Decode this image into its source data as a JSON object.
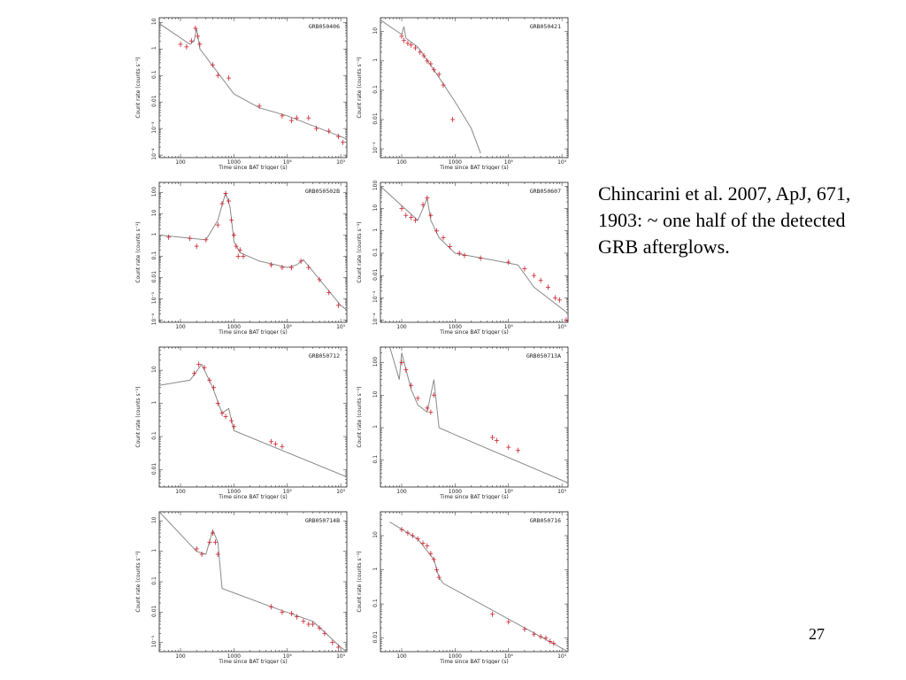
{
  "caption": "Chincarini et al. 2007, ApJ, 671, 1903: ~ one half of the detected GRB afterglows.",
  "page_number": "27",
  "colors": {
    "data": "#cc1f2a",
    "model": "#8a8a8a",
    "axis": "#222222"
  },
  "chart_data": [
    {
      "type": "scatter",
      "title": "GRB050406",
      "xlabel": "Time since BAT trigger (s)",
      "ylabel": "Count rate (counts s⁻¹)",
      "xscale": "log",
      "yscale": "log",
      "xlim": [
        40,
        130000
      ],
      "ylim": [
        8e-05,
        15
      ],
      "xticks": [
        {
          "v": 100,
          "label": "100"
        },
        {
          "v": 1000,
          "label": "1000"
        },
        {
          "v": 10000,
          "label": "10⁴"
        },
        {
          "v": 100000,
          "label": "10⁵"
        }
      ],
      "yticks": [
        {
          "v": 10,
          "label": "10"
        },
        {
          "v": 1,
          "label": "1"
        },
        {
          "v": 0.1,
          "label": "0.1"
        },
        {
          "v": 0.01,
          "label": "0.01"
        },
        {
          "v": 0.001,
          "label": "10⁻³"
        },
        {
          "v": 0.0001,
          "label": "10⁻⁴"
        }
      ],
      "model": [
        [
          40,
          9
        ],
        [
          150,
          1.5
        ],
        [
          180,
          2
        ],
        [
          200,
          6
        ],
        [
          230,
          1
        ],
        [
          300,
          0.5
        ],
        [
          1000,
          0.02
        ],
        [
          3000,
          0.006
        ],
        [
          10000,
          0.003
        ],
        [
          100000,
          0.0005
        ],
        [
          130000,
          0.0004
        ]
      ],
      "points": [
        [
          100,
          1.5
        ],
        [
          130,
          1.2
        ],
        [
          160,
          2
        ],
        [
          190,
          6
        ],
        [
          210,
          3
        ],
        [
          230,
          1.5
        ],
        [
          400,
          0.25
        ],
        [
          500,
          0.1
        ],
        [
          800,
          0.08
        ],
        [
          3000,
          0.007
        ],
        [
          8000,
          0.003
        ],
        [
          12000,
          0.002
        ],
        [
          15000,
          0.0025
        ],
        [
          25000,
          0.0025
        ],
        [
          35000,
          0.001
        ],
        [
          60000,
          0.0008
        ],
        [
          90000,
          0.0005
        ],
        [
          110000,
          0.0003
        ]
      ]
    },
    {
      "type": "scatter",
      "title": "GRB050421",
      "xlabel": "Time since BAT trigger (s)",
      "ylabel": "Count rate (counts s⁻¹)",
      "xscale": "log",
      "yscale": "log",
      "xlim": [
        40,
        130000
      ],
      "ylim": [
        0.0005,
        30
      ],
      "xticks": [
        {
          "v": 100,
          "label": "100"
        },
        {
          "v": 1000,
          "label": "1000"
        },
        {
          "v": 10000,
          "label": "10⁴"
        },
        {
          "v": 100000,
          "label": "10⁵"
        }
      ],
      "yticks": [
        {
          "v": 10,
          "label": "10"
        },
        {
          "v": 1,
          "label": "1"
        },
        {
          "v": 0.1,
          "label": "0.1"
        },
        {
          "v": 0.01,
          "label": "0.01"
        },
        {
          "v": 0.001,
          "label": "10⁻³"
        }
      ],
      "model": [
        [
          40,
          25
        ],
        [
          100,
          8
        ],
        [
          110,
          15
        ],
        [
          120,
          6
        ],
        [
          200,
          3
        ],
        [
          400,
          0.5
        ],
        [
          1000,
          0.04
        ],
        [
          2000,
          0.005
        ],
        [
          3000,
          0.0007
        ]
      ],
      "points": [
        [
          100,
          7
        ],
        [
          110,
          5
        ],
        [
          130,
          4
        ],
        [
          150,
          3.5
        ],
        [
          180,
          2.8
        ],
        [
          220,
          2
        ],
        [
          260,
          1.5
        ],
        [
          300,
          1
        ],
        [
          350,
          0.8
        ],
        [
          400,
          0.5
        ],
        [
          500,
          0.35
        ],
        [
          600,
          0.15
        ],
        [
          900,
          0.01
        ]
      ]
    },
    {
      "type": "scatter",
      "title": "GRB050502B",
      "xlabel": "Time since BAT trigger (s)",
      "ylabel": "Count rate (counts s⁻¹)",
      "xscale": "log",
      "yscale": "log",
      "xlim": [
        40,
        130000
      ],
      "ylim": [
        8e-05,
        300
      ],
      "xticks": [
        {
          "v": 100,
          "label": "100"
        },
        {
          "v": 1000,
          "label": "1000"
        },
        {
          "v": 10000,
          "label": "10⁴"
        },
        {
          "v": 100000,
          "label": "10⁵"
        }
      ],
      "yticks": [
        {
          "v": 100,
          "label": "100"
        },
        {
          "v": 10,
          "label": "10"
        },
        {
          "v": 1,
          "label": "1"
        },
        {
          "v": 0.1,
          "label": "0.1"
        },
        {
          "v": 0.01,
          "label": "0.01"
        },
        {
          "v": 0.001,
          "label": "10⁻³"
        },
        {
          "v": 0.0001,
          "label": "10⁻⁴"
        }
      ],
      "model": [
        [
          40,
          1
        ],
        [
          300,
          0.6
        ],
        [
          500,
          5
        ],
        [
          700,
          100
        ],
        [
          850,
          20
        ],
        [
          1000,
          0.5
        ],
        [
          1300,
          0.15
        ],
        [
          3000,
          0.06
        ],
        [
          10000,
          0.03
        ],
        [
          15000,
          0.04
        ],
        [
          20000,
          0.07
        ],
        [
          30000,
          0.02
        ],
        [
          100000,
          0.0005
        ],
        [
          130000,
          0.0003
        ]
      ],
      "points": [
        [
          60,
          0.8
        ],
        [
          150,
          0.7
        ],
        [
          200,
          0.3
        ],
        [
          300,
          0.6
        ],
        [
          500,
          3
        ],
        [
          600,
          30
        ],
        [
          700,
          90
        ],
        [
          800,
          40
        ],
        [
          900,
          5
        ],
        [
          1000,
          1
        ],
        [
          1100,
          0.3
        ],
        [
          1200,
          0.1
        ],
        [
          1300,
          0.2
        ],
        [
          1500,
          0.1
        ],
        [
          5000,
          0.04
        ],
        [
          8000,
          0.03
        ],
        [
          12000,
          0.03
        ],
        [
          18000,
          0.06
        ],
        [
          25000,
          0.03
        ],
        [
          40000,
          0.008
        ],
        [
          60000,
          0.002
        ],
        [
          90000,
          0.0005
        ]
      ]
    },
    {
      "type": "scatter",
      "title": "GRB050607",
      "xlabel": "Time since BAT trigger (s)",
      "ylabel": "Count rate (counts s⁻¹)",
      "xscale": "log",
      "yscale": "log",
      "xlim": [
        40,
        130000
      ],
      "ylim": [
        8e-05,
        150
      ],
      "xticks": [
        {
          "v": 100,
          "label": "100"
        },
        {
          "v": 1000,
          "label": "1000"
        },
        {
          "v": 10000,
          "label": "10⁴"
        },
        {
          "v": 100000,
          "label": "10⁵"
        }
      ],
      "yticks": [
        {
          "v": 100,
          "label": "100"
        },
        {
          "v": 10,
          "label": "10"
        },
        {
          "v": 1,
          "label": "1"
        },
        {
          "v": 0.1,
          "label": "0.1"
        },
        {
          "v": 0.01,
          "label": "0.01"
        },
        {
          "v": 0.001,
          "label": "10⁻³"
        },
        {
          "v": 0.0001,
          "label": "10⁻⁴"
        }
      ],
      "model": [
        [
          40,
          100
        ],
        [
          200,
          3
        ],
        [
          250,
          10
        ],
        [
          300,
          30
        ],
        [
          350,
          3
        ],
        [
          500,
          0.5
        ],
        [
          1000,
          0.1
        ],
        [
          5000,
          0.05
        ],
        [
          15000,
          0.03
        ],
        [
          30000,
          0.003
        ],
        [
          130000,
          0.0002
        ]
      ],
      "points": [
        [
          100,
          10
        ],
        [
          120,
          5
        ],
        [
          150,
          4
        ],
        [
          180,
          3
        ],
        [
          250,
          15
        ],
        [
          300,
          30
        ],
        [
          350,
          5
        ],
        [
          450,
          1
        ],
        [
          600,
          0.5
        ],
        [
          800,
          0.2
        ],
        [
          1200,
          0.1
        ],
        [
          1500,
          0.08
        ],
        [
          3000,
          0.06
        ],
        [
          10000,
          0.04
        ],
        [
          20000,
          0.02
        ],
        [
          30000,
          0.01
        ],
        [
          40000,
          0.006
        ],
        [
          55000,
          0.003
        ],
        [
          75000,
          0.001
        ],
        [
          90000,
          0.0008
        ],
        [
          120000,
          0.0001
        ]
      ]
    },
    {
      "type": "scatter",
      "title": "GRB050712",
      "xlabel": "Time since BAT trigger (s)",
      "ylabel": "Count rate (counts s⁻¹)",
      "xscale": "log",
      "yscale": "log",
      "xlim": [
        40,
        130000
      ],
      "ylim": [
        0.003,
        50
      ],
      "xticks": [
        {
          "v": 100,
          "label": "100"
        },
        {
          "v": 1000,
          "label": "1000"
        },
        {
          "v": 10000,
          "label": "10⁴"
        },
        {
          "v": 100000,
          "label": "10⁵"
        }
      ],
      "yticks": [
        {
          "v": 10,
          "label": "10"
        },
        {
          "v": 1,
          "label": "1"
        },
        {
          "v": 0.1,
          "label": "0.1"
        },
        {
          "v": 0.01,
          "label": "0.01"
        }
      ],
      "model": [
        [
          40,
          3.5
        ],
        [
          150,
          5
        ],
        [
          250,
          15
        ],
        [
          400,
          3
        ],
        [
          600,
          0.5
        ],
        [
          800,
          0.7
        ],
        [
          1000,
          0.15
        ],
        [
          130000,
          0.006
        ]
      ],
      "points": [
        [
          180,
          8
        ],
        [
          220,
          15
        ],
        [
          280,
          12
        ],
        [
          350,
          5
        ],
        [
          420,
          3
        ],
        [
          500,
          1
        ],
        [
          600,
          0.5
        ],
        [
          700,
          0.4
        ],
        [
          900,
          0.3
        ],
        [
          1000,
          0.2
        ],
        [
          5000,
          0.07
        ],
        [
          6000,
          0.06
        ],
        [
          8000,
          0.05
        ]
      ]
    },
    {
      "type": "scatter",
      "title": "GRB050713A",
      "xlabel": "Time since BAT trigger (s)",
      "ylabel": "Count rate (counts s⁻¹)",
      "xscale": "log",
      "yscale": "log",
      "xlim": [
        40,
        130000
      ],
      "ylim": [
        0.015,
        300
      ],
      "xticks": [
        {
          "v": 100,
          "label": "100"
        },
        {
          "v": 1000,
          "label": "1000"
        },
        {
          "v": 10000,
          "label": "10⁴"
        },
        {
          "v": 100000,
          "label": "10⁵"
        }
      ],
      "yticks": [
        {
          "v": 100,
          "label": "100"
        },
        {
          "v": 10,
          "label": "10"
        },
        {
          "v": 1,
          "label": "1"
        },
        {
          "v": 0.1,
          "label": "0.1"
        }
      ],
      "model": [
        [
          60,
          300
        ],
        [
          90,
          30
        ],
        [
          100,
          200
        ],
        [
          150,
          15
        ],
        [
          200,
          5
        ],
        [
          300,
          3
        ],
        [
          400,
          30
        ],
        [
          500,
          1
        ],
        [
          1000,
          0.6
        ],
        [
          130000,
          0.02
        ]
      ],
      "points": [
        [
          100,
          100
        ],
        [
          120,
          60
        ],
        [
          150,
          20
        ],
        [
          200,
          8
        ],
        [
          300,
          4
        ],
        [
          350,
          3
        ],
        [
          400,
          10
        ],
        [
          5000,
          0.5
        ],
        [
          6000,
          0.4
        ],
        [
          10000,
          0.25
        ],
        [
          15000,
          0.2
        ]
      ]
    },
    {
      "type": "scatter",
      "title": "GRB050714B",
      "xlabel": "Time since BAT trigger (s)",
      "ylabel": "Count rate (counts s⁻¹)",
      "xscale": "log",
      "yscale": "log",
      "xlim": [
        40,
        130000
      ],
      "ylim": [
        0.0005,
        20
      ],
      "xticks": [
        {
          "v": 100,
          "label": "100"
        },
        {
          "v": 1000,
          "label": "1000"
        },
        {
          "v": 10000,
          "label": "10⁴"
        },
        {
          "v": 100000,
          "label": "10⁵"
        }
      ],
      "yticks": [
        {
          "v": 10,
          "label": "10"
        },
        {
          "v": 1,
          "label": "1"
        },
        {
          "v": 0.1,
          "label": "0.1"
        },
        {
          "v": 0.01,
          "label": "0.01"
        },
        {
          "v": 0.001,
          "label": "10⁻³"
        }
      ],
      "model": [
        [
          40,
          20
        ],
        [
          200,
          1
        ],
        [
          300,
          0.8
        ],
        [
          400,
          5
        ],
        [
          500,
          2
        ],
        [
          600,
          0.06
        ],
        [
          5000,
          0.015
        ],
        [
          30000,
          0.005
        ],
        [
          100000,
          0.0007
        ],
        [
          130000,
          0.0005
        ]
      ],
      "points": [
        [
          200,
          1.2
        ],
        [
          250,
          0.8
        ],
        [
          350,
          2
        ],
        [
          400,
          4
        ],
        [
          450,
          2
        ],
        [
          500,
          0.8
        ],
        [
          5000,
          0.015
        ],
        [
          8000,
          0.01
        ],
        [
          12000,
          0.009
        ],
        [
          15000,
          0.007
        ],
        [
          20000,
          0.005
        ],
        [
          25000,
          0.004
        ],
        [
          30000,
          0.004
        ],
        [
          40000,
          0.003
        ],
        [
          50000,
          0.002
        ],
        [
          70000,
          0.001
        ],
        [
          90000,
          0.0007
        ]
      ]
    },
    {
      "type": "scatter",
      "title": "GRB050716",
      "xlabel": "Time since BAT trigger (s)",
      "ylabel": "Count rate (counts s⁻¹)",
      "xscale": "log",
      "yscale": "log",
      "xlim": [
        40,
        130000
      ],
      "ylim": [
        0.004,
        50
      ],
      "xticks": [
        {
          "v": 100,
          "label": "100"
        },
        {
          "v": 1000,
          "label": "1000"
        },
        {
          "v": 10000,
          "label": "10⁴"
        },
        {
          "v": 100000,
          "label": "10⁵"
        }
      ],
      "yticks": [
        {
          "v": 10,
          "label": "10"
        },
        {
          "v": 1,
          "label": "1"
        },
        {
          "v": 0.1,
          "label": "0.1"
        },
        {
          "v": 0.01,
          "label": "0.01"
        }
      ],
      "model": [
        [
          60,
          25
        ],
        [
          200,
          8
        ],
        [
          400,
          2
        ],
        [
          500,
          0.6
        ],
        [
          600,
          0.4
        ],
        [
          130000,
          0.004
        ]
      ],
      "points": [
        [
          100,
          15
        ],
        [
          130,
          12
        ],
        [
          160,
          10
        ],
        [
          200,
          8
        ],
        [
          250,
          6
        ],
        [
          300,
          5
        ],
        [
          350,
          3
        ],
        [
          400,
          2
        ],
        [
          450,
          1
        ],
        [
          500,
          0.6
        ],
        [
          5000,
          0.05
        ],
        [
          10000,
          0.03
        ],
        [
          20000,
          0.018
        ],
        [
          30000,
          0.013
        ],
        [
          40000,
          0.011
        ],
        [
          50000,
          0.01
        ],
        [
          60000,
          0.008
        ],
        [
          70000,
          0.007
        ]
      ]
    }
  ]
}
